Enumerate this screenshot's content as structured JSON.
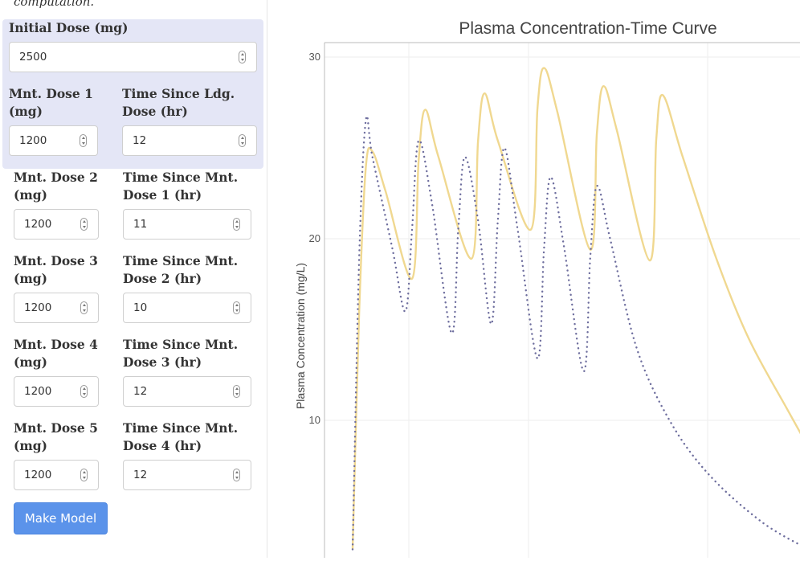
{
  "sidebar": {
    "intro_text": "computation.",
    "initial_dose": {
      "label": "Initial Dose (mg)",
      "value": "2500"
    },
    "rows": [
      {
        "dose_label": "Mnt. Dose 1 (mg)",
        "dose_value": "1200",
        "time_label": "Time Since Ldg. Dose (hr)",
        "time_value": "12"
      },
      {
        "dose_label": "Mnt. Dose 2 (mg)",
        "dose_value": "1200",
        "time_label": "Time Since Mnt. Dose 1 (hr)",
        "time_value": "11"
      },
      {
        "dose_label": "Mnt. Dose 3 (mg)",
        "dose_value": "1200",
        "time_label": "Time Since Mnt. Dose 2 (hr)",
        "time_value": "10"
      },
      {
        "dose_label": "Mnt. Dose 4 (mg)",
        "dose_value": "1200",
        "time_label": "Time Since Mnt. Dose 3 (hr)",
        "time_value": "12"
      },
      {
        "dose_label": "Mnt. Dose 5 (mg)",
        "dose_value": "1200",
        "time_label": "Time Since Mnt. Dose 4 (hr)",
        "time_value": "12"
      }
    ],
    "button_label": "Make Model"
  },
  "chart_data": {
    "type": "line",
    "title": "Plasma Concentration-Time Curve",
    "xlabel": "",
    "ylabel": "Plasma Concentration (mg/L)",
    "ylim": [
      2.9,
      31
    ],
    "yticks": [
      10,
      20,
      30
    ],
    "grid": true,
    "colors": {
      "solid": "#f0d890",
      "dotted": "#6e6e9e"
    },
    "series": [
      {
        "style": "solid",
        "points": [
          [
            0,
            2.9
          ],
          [
            1,
            16
          ],
          [
            2,
            23.9
          ],
          [
            3,
            24.8
          ],
          [
            5,
            22.6
          ],
          [
            9,
            17.8
          ],
          [
            10,
            24.3
          ],
          [
            11,
            27.1
          ],
          [
            13,
            24.5
          ],
          [
            18,
            18.9
          ],
          [
            19,
            25.4
          ],
          [
            20,
            28
          ],
          [
            22,
            25.4
          ],
          [
            27,
            20.5
          ],
          [
            28,
            27.2
          ],
          [
            29,
            29.4
          ],
          [
            31,
            27
          ],
          [
            36,
            19.4
          ],
          [
            37,
            25.8
          ],
          [
            38,
            28.4
          ],
          [
            40,
            26
          ],
          [
            45,
            18.8
          ],
          [
            46,
            25.5
          ],
          [
            47,
            27.9
          ],
          [
            50,
            24.5
          ],
          [
            55,
            19
          ],
          [
            60,
            14.5
          ],
          [
            66,
            10.5
          ],
          [
            72,
            6.6
          ]
        ]
      },
      {
        "style": "dotted",
        "points": [
          [
            0,
            2.9
          ],
          [
            1,
            19
          ],
          [
            2,
            26.5
          ],
          [
            3,
            24.5
          ],
          [
            6,
            19.5
          ],
          [
            8,
            16
          ],
          [
            9,
            20.5
          ],
          [
            10,
            25.4
          ],
          [
            12,
            22
          ],
          [
            15,
            14.8
          ],
          [
            16,
            20.5
          ],
          [
            17,
            24.5
          ],
          [
            19,
            21
          ],
          [
            21,
            15.3
          ],
          [
            22,
            21
          ],
          [
            23,
            25
          ],
          [
            25,
            20.5
          ],
          [
            28,
            13.4
          ],
          [
            29,
            19.5
          ],
          [
            30,
            23.4
          ],
          [
            32,
            19.6
          ],
          [
            35,
            12.7
          ],
          [
            36,
            19
          ],
          [
            37,
            22.9
          ],
          [
            39,
            20
          ],
          [
            43,
            14
          ],
          [
            48,
            10
          ],
          [
            54,
            7
          ],
          [
            62,
            4.4
          ],
          [
            69,
            2.9
          ]
        ]
      }
    ]
  }
}
